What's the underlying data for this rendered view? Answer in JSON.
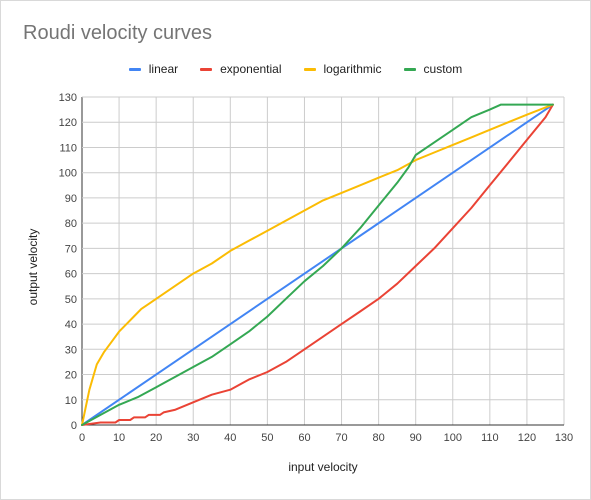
{
  "chart_data": {
    "type": "line",
    "title": "Roudi velocity curves",
    "xlabel": "input velocity",
    "ylabel": "output velocity",
    "xlim": [
      0,
      130
    ],
    "ylim": [
      0,
      130
    ],
    "xticks": [
      0,
      10,
      20,
      30,
      40,
      50,
      60,
      70,
      80,
      90,
      100,
      110,
      120,
      130
    ],
    "yticks": [
      0,
      10,
      20,
      30,
      40,
      50,
      60,
      70,
      80,
      90,
      100,
      110,
      120,
      130
    ],
    "grid": true,
    "legend_position": "top",
    "series": [
      {
        "name": "linear",
        "color": "#4285f4",
        "points": [
          [
            0,
            0
          ],
          [
            127,
            127
          ]
        ]
      },
      {
        "name": "exponential",
        "color": "#ea4335",
        "points": [
          [
            0,
            0
          ],
          [
            5,
            1
          ],
          [
            9,
            1
          ],
          [
            10,
            2
          ],
          [
            13,
            2
          ],
          [
            14,
            3
          ],
          [
            17,
            3
          ],
          [
            18,
            4
          ],
          [
            21,
            4
          ],
          [
            22,
            5
          ],
          [
            25,
            6
          ],
          [
            30,
            9
          ],
          [
            35,
            12
          ],
          [
            40,
            14
          ],
          [
            45,
            18
          ],
          [
            50,
            21
          ],
          [
            55,
            25
          ],
          [
            60,
            30
          ],
          [
            65,
            35
          ],
          [
            70,
            40
          ],
          [
            75,
            45
          ],
          [
            80,
            50
          ],
          [
            85,
            56
          ],
          [
            90,
            63
          ],
          [
            95,
            70
          ],
          [
            100,
            78
          ],
          [
            105,
            86
          ],
          [
            110,
            95
          ],
          [
            115,
            104
          ],
          [
            120,
            113
          ],
          [
            125,
            122
          ],
          [
            127,
            127
          ]
        ]
      },
      {
        "name": "logarithmic",
        "color": "#fbbc04",
        "points": [
          [
            0,
            0
          ],
          [
            2,
            14
          ],
          [
            4,
            24
          ],
          [
            6,
            29
          ],
          [
            8,
            33
          ],
          [
            10,
            37
          ],
          [
            12,
            40
          ],
          [
            14,
            43
          ],
          [
            16,
            46
          ],
          [
            18,
            48
          ],
          [
            20,
            50
          ],
          [
            25,
            55
          ],
          [
            30,
            60
          ],
          [
            35,
            64
          ],
          [
            40,
            69
          ],
          [
            45,
            73
          ],
          [
            50,
            77
          ],
          [
            55,
            81
          ],
          [
            60,
            85
          ],
          [
            65,
            89
          ],
          [
            70,
            92
          ],
          [
            75,
            95
          ],
          [
            80,
            98
          ],
          [
            85,
            101
          ],
          [
            90,
            105
          ],
          [
            95,
            108
          ],
          [
            100,
            111
          ],
          [
            105,
            114
          ],
          [
            110,
            117
          ],
          [
            115,
            120
          ],
          [
            120,
            123
          ],
          [
            127,
            127
          ]
        ]
      },
      {
        "name": "custom",
        "color": "#34a853",
        "points": [
          [
            0,
            0
          ],
          [
            5,
            4
          ],
          [
            10,
            8
          ],
          [
            15,
            11
          ],
          [
            20,
            15
          ],
          [
            25,
            19
          ],
          [
            30,
            23
          ],
          [
            35,
            27
          ],
          [
            40,
            32
          ],
          [
            45,
            37
          ],
          [
            50,
            43
          ],
          [
            55,
            50
          ],
          [
            60,
            57
          ],
          [
            65,
            63
          ],
          [
            70,
            70
          ],
          [
            75,
            78
          ],
          [
            80,
            87
          ],
          [
            85,
            96
          ],
          [
            88,
            102
          ],
          [
            90,
            107
          ],
          [
            95,
            112
          ],
          [
            100,
            117
          ],
          [
            105,
            122
          ],
          [
            110,
            125
          ],
          [
            113,
            127
          ],
          [
            127,
            127
          ]
        ]
      }
    ]
  }
}
